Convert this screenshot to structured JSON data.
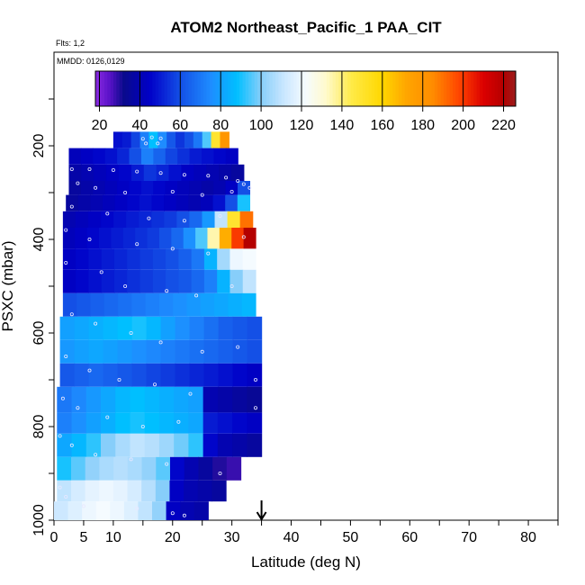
{
  "header": {
    "title": "ATOM2 Northeast_Pacific_1 PAA_CIT",
    "flights": "Flts: 1,2",
    "mmdd": "MMDD: 0126,0129"
  },
  "colorbar": {
    "ticks": [
      "20",
      "40",
      "60",
      "80",
      "100",
      "120",
      "140",
      "160",
      "180",
      "200",
      "220"
    ],
    "range": [
      18,
      226
    ],
    "stops": [
      {
        "v": 18,
        "c": "#8a2be2"
      },
      {
        "v": 25,
        "c": "#5a12c8"
      },
      {
        "v": 32,
        "c": "#0a0a8c"
      },
      {
        "v": 45,
        "c": "#0000c8"
      },
      {
        "v": 60,
        "c": "#1450e6"
      },
      {
        "v": 75,
        "c": "#1e8cff"
      },
      {
        "v": 88,
        "c": "#00bfff"
      },
      {
        "v": 100,
        "c": "#87cefa"
      },
      {
        "v": 112,
        "c": "#cde8ff"
      },
      {
        "v": 122,
        "c": "#f5fbff"
      },
      {
        "v": 132,
        "c": "#fffacd"
      },
      {
        "v": 145,
        "c": "#ffea46"
      },
      {
        "v": 160,
        "c": "#ffd700"
      },
      {
        "v": 172,
        "c": "#ffa500"
      },
      {
        "v": 185,
        "c": "#ff8c00"
      },
      {
        "v": 198,
        "c": "#ff4500"
      },
      {
        "v": 210,
        "c": "#dc0000"
      },
      {
        "v": 220,
        "c": "#b40000"
      },
      {
        "v": 226,
        "c": "#9b1c1c"
      }
    ]
  },
  "chart_data": {
    "type": "heatmap",
    "title": "ATOM2 Northeast_Pacific_1 PAA_CIT",
    "xlabel": "Latitude (deg N)",
    "ylabel": "PSXC (mbar)",
    "xlim": [
      0,
      85
    ],
    "ylim": [
      1000,
      0
    ],
    "xticks": [
      "0",
      "5",
      "10",
      "20",
      "30",
      "40",
      "50",
      "60",
      "70",
      "80"
    ],
    "yticks": [
      "200",
      "400",
      "600",
      "800",
      "1000"
    ],
    "grid": false,
    "colorbar_position": "top",
    "marker_latitude": 35,
    "layers": [
      {
        "p": [
          170,
          205
        ],
        "lat": [
          10,
          29.5
        ],
        "v": [
          48,
          50,
          58,
          72,
          88,
          75,
          62,
          55,
          60,
          70,
          95,
          150,
          180
        ]
      },
      {
        "p": [
          205,
          240
        ],
        "lat": [
          2.5,
          31
        ],
        "v": [
          42,
          44,
          46,
          48,
          52,
          60,
          72,
          65,
          58,
          54,
          50,
          48,
          46,
          44
        ]
      },
      {
        "p": [
          240,
          275
        ],
        "lat": [
          2.5,
          32
        ],
        "v": [
          38,
          40,
          42,
          44,
          46,
          50,
          55,
          52,
          48,
          44,
          42,
          40,
          38,
          36
        ]
      },
      {
        "p": [
          275,
          305
        ],
        "lat": [
          2.5,
          33
        ],
        "v": [
          36,
          38,
          40,
          42,
          44,
          46,
          48,
          46,
          44,
          42,
          40,
          38,
          40,
          44,
          60
        ]
      },
      {
        "p": [
          305,
          340
        ],
        "lat": [
          2,
          33
        ],
        "v": [
          36,
          38,
          40,
          42,
          44,
          46,
          48,
          46,
          44,
          42,
          40,
          42,
          48,
          60,
          90
        ]
      },
      {
        "p": [
          340,
          375
        ],
        "lat": [
          1.5,
          33.5
        ],
        "v": [
          40,
          42,
          44,
          46,
          48,
          50,
          52,
          54,
          56,
          60,
          66,
          78,
          110,
          150,
          190
        ]
      },
      {
        "p": [
          375,
          420
        ],
        "lat": [
          1.5,
          34
        ],
        "v": [
          42,
          44,
          46,
          48,
          50,
          52,
          54,
          56,
          60,
          66,
          76,
          95,
          135,
          170,
          200,
          220
        ]
      },
      {
        "p": [
          420,
          465
        ],
        "lat": [
          1.5,
          34
        ],
        "v": [
          44,
          46,
          48,
          50,
          52,
          54,
          56,
          58,
          60,
          64,
          70,
          85,
          105,
          120,
          122
        ]
      },
      {
        "p": [
          465,
          515
        ],
        "lat": [
          1.5,
          34
        ],
        "v": [
          44,
          46,
          48,
          50,
          52,
          54,
          56,
          58,
          60,
          62,
          66,
          72,
          85,
          100,
          110
        ]
      },
      {
        "p": [
          515,
          565
        ],
        "lat": [
          1.5,
          34
        ],
        "v": [
          60,
          62,
          64,
          66,
          68,
          70,
          72,
          74,
          76,
          78,
          80,
          82,
          84,
          86
        ]
      },
      {
        "p": [
          565,
          615
        ],
        "lat": [
          1,
          35
        ],
        "v": [
          80,
          82,
          84,
          86,
          88,
          90,
          86,
          80,
          76,
          72,
          68,
          64,
          62,
          60
        ]
      },
      {
        "p": [
          615,
          665
        ],
        "lat": [
          1,
          35
        ],
        "v": [
          78,
          80,
          82,
          80,
          78,
          76,
          74,
          72,
          70,
          68,
          66,
          64,
          62,
          60
        ]
      },
      {
        "p": [
          665,
          715
        ],
        "lat": [
          1,
          35
        ],
        "v": [
          62,
          64,
          66,
          64,
          62,
          60,
          58,
          56,
          54,
          52,
          50,
          48,
          46,
          44
        ]
      },
      {
        "p": [
          715,
          770
        ],
        "lat": [
          0.5,
          35
        ],
        "v": [
          70,
          74,
          78,
          82,
          86,
          88,
          86,
          84,
          82,
          80,
          40,
          38,
          36,
          34
        ]
      },
      {
        "p": [
          770,
          815
        ],
        "lat": [
          0.5,
          35
        ],
        "v": [
          72,
          76,
          80,
          84,
          88,
          90,
          88,
          86,
          84,
          82,
          50,
          48,
          46,
          44
        ]
      },
      {
        "p": [
          815,
          865
        ],
        "lat": [
          0.5,
          35
        ],
        "v": [
          82,
          86,
          92,
          100,
          106,
          110,
          108,
          104,
          98,
          92,
          46,
          40,
          38,
          36
        ]
      },
      {
        "p": [
          865,
          915
        ],
        "lat": [
          0.5,
          31.5
        ],
        "v": [
          90,
          96,
          102,
          106,
          108,
          106,
          102,
          96,
          46,
          40,
          36,
          30,
          28
        ]
      },
      {
        "p": [
          915,
          960
        ],
        "lat": [
          0.5,
          29
        ],
        "v": [
          110,
          114,
          118,
          120,
          118,
          114,
          108,
          100,
          44,
          40,
          38,
          36
        ]
      },
      {
        "p": [
          960,
          1000
        ],
        "lat": [
          0,
          26
        ],
        "v": [
          112,
          116,
          120,
          122,
          120,
          116,
          110,
          102,
          44,
          40,
          38
        ]
      }
    ],
    "profile_points": [
      [
        15,
        185
      ],
      [
        16.5,
        182
      ],
      [
        18,
        184
      ],
      [
        15.5,
        195
      ],
      [
        17.5,
        195
      ],
      [
        3,
        250
      ],
      [
        6,
        250
      ],
      [
        10,
        252
      ],
      [
        14,
        255
      ],
      [
        18,
        258
      ],
      [
        22,
        262
      ],
      [
        26,
        264
      ],
      [
        29,
        268
      ],
      [
        31,
        275
      ],
      [
        32,
        282
      ],
      [
        33,
        290
      ],
      [
        4,
        280
      ],
      [
        7,
        290
      ],
      [
        12,
        300
      ],
      [
        20,
        298
      ],
      [
        25,
        305
      ],
      [
        30,
        298
      ],
      [
        3,
        330
      ],
      [
        9,
        345
      ],
      [
        16,
        355
      ],
      [
        22,
        360
      ],
      [
        28,
        350
      ],
      [
        2,
        380
      ],
      [
        6,
        400
      ],
      [
        14,
        410
      ],
      [
        20,
        420
      ],
      [
        26,
        430
      ],
      [
        32,
        395
      ],
      [
        2,
        450
      ],
      [
        8,
        470
      ],
      [
        12,
        500
      ],
      [
        19,
        510
      ],
      [
        24,
        520
      ],
      [
        30,
        500
      ],
      [
        3,
        560
      ],
      [
        7,
        580
      ],
      [
        13,
        600
      ],
      [
        18,
        620
      ],
      [
        25,
        640
      ],
      [
        31,
        630
      ],
      [
        2,
        650
      ],
      [
        6,
        680
      ],
      [
        11,
        700
      ],
      [
        17,
        710
      ],
      [
        23,
        730
      ],
      [
        34,
        700
      ],
      [
        1.5,
        740
      ],
      [
        4,
        760
      ],
      [
        9,
        780
      ],
      [
        15,
        800
      ],
      [
        21,
        790
      ],
      [
        34,
        760
      ],
      [
        1,
        820
      ],
      [
        3,
        840
      ],
      [
        7,
        860
      ],
      [
        13,
        870
      ],
      [
        19,
        880
      ],
      [
        28,
        900
      ],
      [
        1,
        930
      ],
      [
        2,
        950
      ],
      [
        5,
        970
      ],
      [
        14,
        975
      ],
      [
        20,
        985
      ],
      [
        22,
        990
      ]
    ]
  }
}
